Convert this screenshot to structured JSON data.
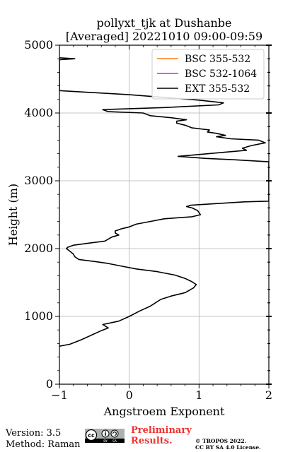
{
  "chart_data": {
    "type": "line",
    "title": "pollyxt_tjk at Dushanbe",
    "subtitle": "[Averaged] 20221010 09:00-09:59",
    "xlabel": "Angstroem Exponent",
    "ylabel": "Height (m)",
    "xlim": [
      -1,
      2
    ],
    "ylim": [
      0,
      5000
    ],
    "xticks": [
      "−1",
      "0",
      "1",
      "2"
    ],
    "yticks": [
      "0",
      "1000",
      "2000",
      "3000",
      "4000",
      "5000"
    ],
    "grid": true,
    "legend_position": "top-right",
    "series": [
      {
        "name": "BSC 355-532",
        "color": "#ff7f0e",
        "points": []
      },
      {
        "name": "BSC 532-1064",
        "color": "#e41ae4",
        "points": []
      },
      {
        "name": "EXT 355-532",
        "color": "#000000",
        "points": [
          [
            -1.0,
            4815
          ],
          [
            -0.78,
            4800
          ],
          [
            -1.0,
            4785
          ],
          [
            -1.0,
            4330
          ],
          [
            -0.5,
            4300
          ],
          [
            0.0,
            4270
          ],
          [
            0.5,
            4230
          ],
          [
            1.0,
            4190
          ],
          [
            1.35,
            4150
          ],
          [
            1.28,
            4120
          ],
          [
            0.5,
            4080
          ],
          [
            -0.38,
            4050
          ],
          [
            -0.3,
            4020
          ],
          [
            0.2,
            4000
          ],
          [
            0.3,
            3960
          ],
          [
            0.6,
            3930
          ],
          [
            0.82,
            3900
          ],
          [
            0.68,
            3880
          ],
          [
            0.68,
            3850
          ],
          [
            0.8,
            3820
          ],
          [
            0.9,
            3780
          ],
          [
            1.15,
            3750
          ],
          [
            1.12,
            3720
          ],
          [
            1.25,
            3700
          ],
          [
            1.38,
            3670
          ],
          [
            1.25,
            3650
          ],
          [
            1.45,
            3620
          ],
          [
            1.85,
            3600
          ],
          [
            1.95,
            3560
          ],
          [
            1.75,
            3520
          ],
          [
            1.62,
            3480
          ],
          [
            1.68,
            3450
          ],
          [
            1.35,
            3420
          ],
          [
            0.7,
            3360
          ],
          [
            1.1,
            3330
          ],
          [
            1.5,
            3310
          ],
          [
            2.0,
            3280
          ],
          [
            2.0,
            2700
          ],
          [
            1.65,
            2690
          ],
          [
            1.2,
            2660
          ],
          [
            0.88,
            2640
          ],
          [
            0.82,
            2620
          ],
          [
            0.9,
            2600
          ],
          [
            0.98,
            2560
          ],
          [
            1.02,
            2500
          ],
          [
            0.9,
            2470
          ],
          [
            0.5,
            2440
          ],
          [
            0.3,
            2400
          ],
          [
            0.1,
            2360
          ],
          [
            0.0,
            2320
          ],
          [
            -0.12,
            2290
          ],
          [
            -0.2,
            2260
          ],
          [
            -0.2,
            2230
          ],
          [
            -0.15,
            2200
          ],
          [
            -0.25,
            2170
          ],
          [
            -0.3,
            2140
          ],
          [
            -0.35,
            2110
          ],
          [
            -0.58,
            2080
          ],
          [
            -0.8,
            2050
          ],
          [
            -0.88,
            2020
          ],
          [
            -0.9,
            2000
          ],
          [
            -0.85,
            1960
          ],
          [
            -0.8,
            1920
          ],
          [
            -0.78,
            1880
          ],
          [
            -0.72,
            1840
          ],
          [
            -0.5,
            1810
          ],
          [
            -0.3,
            1780
          ],
          [
            -0.1,
            1740
          ],
          [
            0.1,
            1700
          ],
          [
            0.4,
            1660
          ],
          [
            0.65,
            1610
          ],
          [
            0.8,
            1560
          ],
          [
            0.9,
            1510
          ],
          [
            0.96,
            1470
          ],
          [
            0.92,
            1420
          ],
          [
            0.8,
            1350
          ],
          [
            0.6,
            1300
          ],
          [
            0.45,
            1250
          ],
          [
            0.3,
            1150
          ],
          [
            0.15,
            1080
          ],
          [
            0.0,
            1000
          ],
          [
            -0.15,
            930
          ],
          [
            -0.38,
            880
          ],
          [
            -0.3,
            830
          ],
          [
            -0.4,
            790
          ],
          [
            -0.55,
            720
          ],
          [
            -0.7,
            650
          ],
          [
            -0.85,
            590
          ],
          [
            -1.0,
            560
          ]
        ]
      }
    ]
  },
  "footer": {
    "version": "Version: 3.5",
    "method": "Method: Raman",
    "preliminary_line1": "Preliminary",
    "preliminary_line2": "Results.",
    "copyright_line1": "© TROPOS 2022.",
    "copyright_line2": "CC BY SA 4.0 License."
  },
  "license_badge": {
    "text_cc": "cc",
    "text_by": "BY",
    "text_sa": "SA"
  }
}
